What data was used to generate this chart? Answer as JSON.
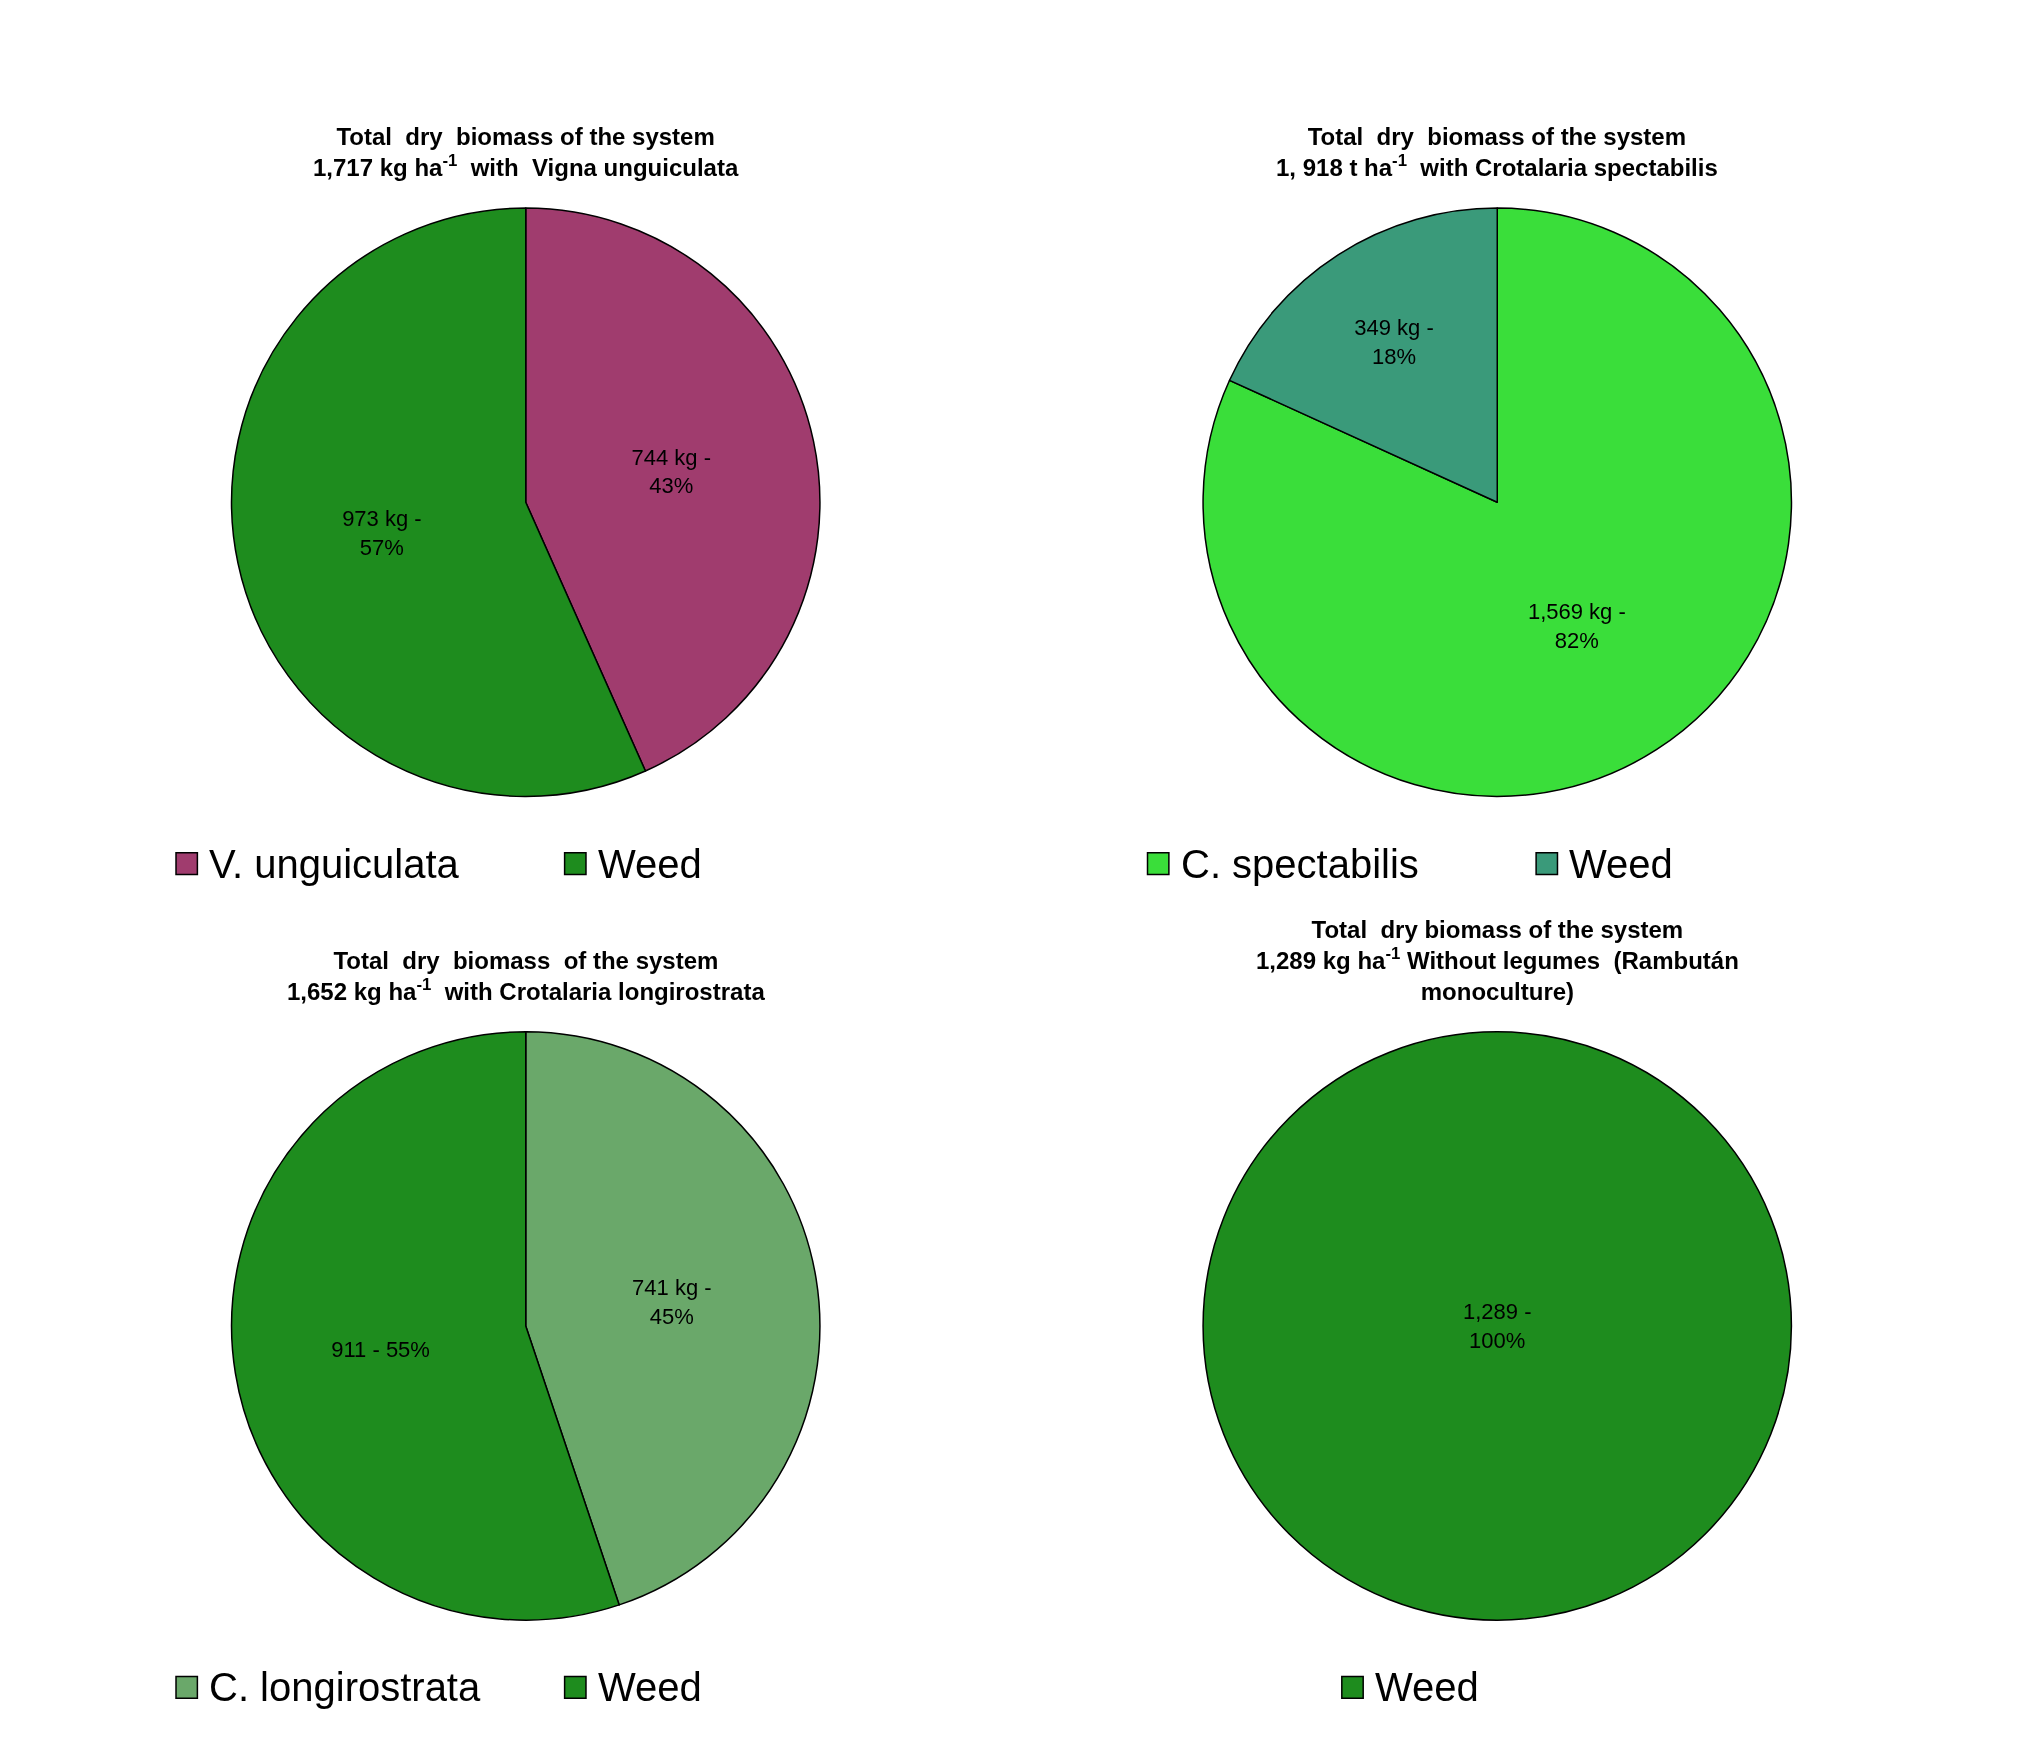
{
  "chart_data": [
    {
      "type": "pie",
      "title": "Total  dry  biomass of the system\n1,717 kg ha$^{-1}$  with  Vigna unguiculata",
      "categories": [
        "V. unguiculata",
        "Weed"
      ],
      "values": [
        744,
        973
      ],
      "colors": [
        "#a03c6e",
        "#1e8c1e"
      ],
      "value_labels": [
        "744 kg -\n43%",
        "973 kg -\n57%"
      ],
      "legend": "bottom"
    },
    {
      "type": "pie",
      "title": "Total  dry  biomass of the system\n1, 918 t ha$^{-1}$  with Crotalaria spectabilis",
      "categories": [
        "C. spectabilis",
        "Weed"
      ],
      "values": [
        1569,
        349
      ],
      "colors": [
        "#3ade3a",
        "#3a9a7a"
      ],
      "value_labels": [
        "1,569 kg -\n82%",
        "349 kg -\n18%"
      ],
      "legend": "bottom"
    },
    {
      "type": "pie",
      "title": "Total  dry  biomass  of the system\n1,652 kg ha$^{-1}$  with Crotalaria longirostrata",
      "categories": [
        "C. longirostrata",
        "Weed"
      ],
      "values": [
        741,
        911
      ],
      "colors": [
        "#6aa86a",
        "#1e8c1e"
      ],
      "value_labels": [
        "741 kg -\n45%",
        "911 - 55%"
      ],
      "legend": "bottom"
    },
    {
      "type": "pie",
      "title": "Total  dry biomass of the system\n1,289 kg ha$^{-1}$ Without legumes  (Rambután\nmonoculture)",
      "categories": [
        "Weed"
      ],
      "values": [
        1289
      ],
      "colors": [
        "#1e8c1e"
      ],
      "value_labels": [
        "1,289 -\n100%"
      ],
      "legend": "bottom"
    }
  ]
}
